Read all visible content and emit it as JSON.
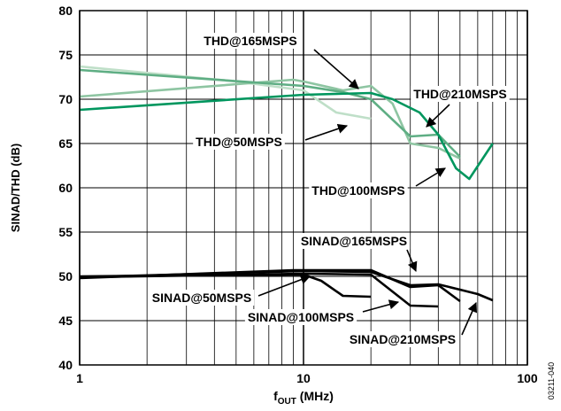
{
  "chart_data": {
    "type": "line",
    "y_label": "SINAD/THD (dB)",
    "x_label": [
      "f",
      "OUT",
      " (MHz)"
    ],
    "figure_id": "03211-040",
    "xscale": "log",
    "xlim": [
      1,
      100
    ],
    "xticks": [
      1,
      10,
      100
    ],
    "ylim": [
      40,
      80
    ],
    "yticks": [
      40,
      45,
      50,
      55,
      60,
      65,
      70,
      75,
      80
    ],
    "grid": true,
    "series": [
      {
        "name": "THD@210MSPS",
        "color": "#00965e",
        "x": [
          1,
          10,
          20,
          25,
          33,
          40,
          48,
          55,
          70
        ],
        "values": [
          68.8,
          70.5,
          70.7,
          70,
          68.5,
          66,
          62.2,
          61,
          65
        ]
      },
      {
        "name": "THD@165MSPS",
        "color": "#5fae84",
        "x": [
          1,
          10,
          15,
          20,
          30,
          40,
          50
        ],
        "values": [
          73.3,
          71.5,
          70.8,
          70,
          65.8,
          66,
          63.5
        ]
      },
      {
        "name": "THD@100MSPS",
        "color": "#8ec5a2",
        "x": [
          1,
          9,
          10,
          15,
          20,
          25,
          30,
          40,
          50
        ],
        "values": [
          70.3,
          72.2,
          72,
          71,
          71.5,
          69.5,
          65,
          64.5,
          63.3
        ]
      },
      {
        "name": "THD@50MSPS",
        "color": "#bfdfc8",
        "x": [
          1,
          5,
          10,
          14,
          20
        ],
        "values": [
          73.7,
          72,
          71,
          68.5,
          67.8
        ]
      },
      {
        "name": "SINAD@210MSPS",
        "color": "#000000",
        "x": [
          1,
          10,
          20,
          30,
          40,
          50,
          60,
          70
        ],
        "values": [
          49.9,
          50.6,
          50.5,
          49,
          49.1,
          48.5,
          48,
          47.3
        ]
      },
      {
        "name": "SINAD@165MSPS",
        "color": "#000000",
        "x": [
          1,
          9,
          20,
          30,
          40,
          50
        ],
        "values": [
          49.8,
          50.7,
          50.7,
          48.8,
          49,
          47.2
        ]
      },
      {
        "name": "SINAD@100MSPS",
        "color": "#000000",
        "x": [
          1,
          10,
          20,
          30,
          40
        ],
        "values": [
          49.9,
          50.3,
          50.2,
          46.7,
          46.6
        ]
      },
      {
        "name": "SINAD@50MSPS",
        "color": "#000000",
        "x": [
          1,
          10,
          12,
          15,
          20
        ],
        "values": [
          50,
          50.2,
          49.5,
          47.8,
          47.7
        ]
      }
    ]
  }
}
